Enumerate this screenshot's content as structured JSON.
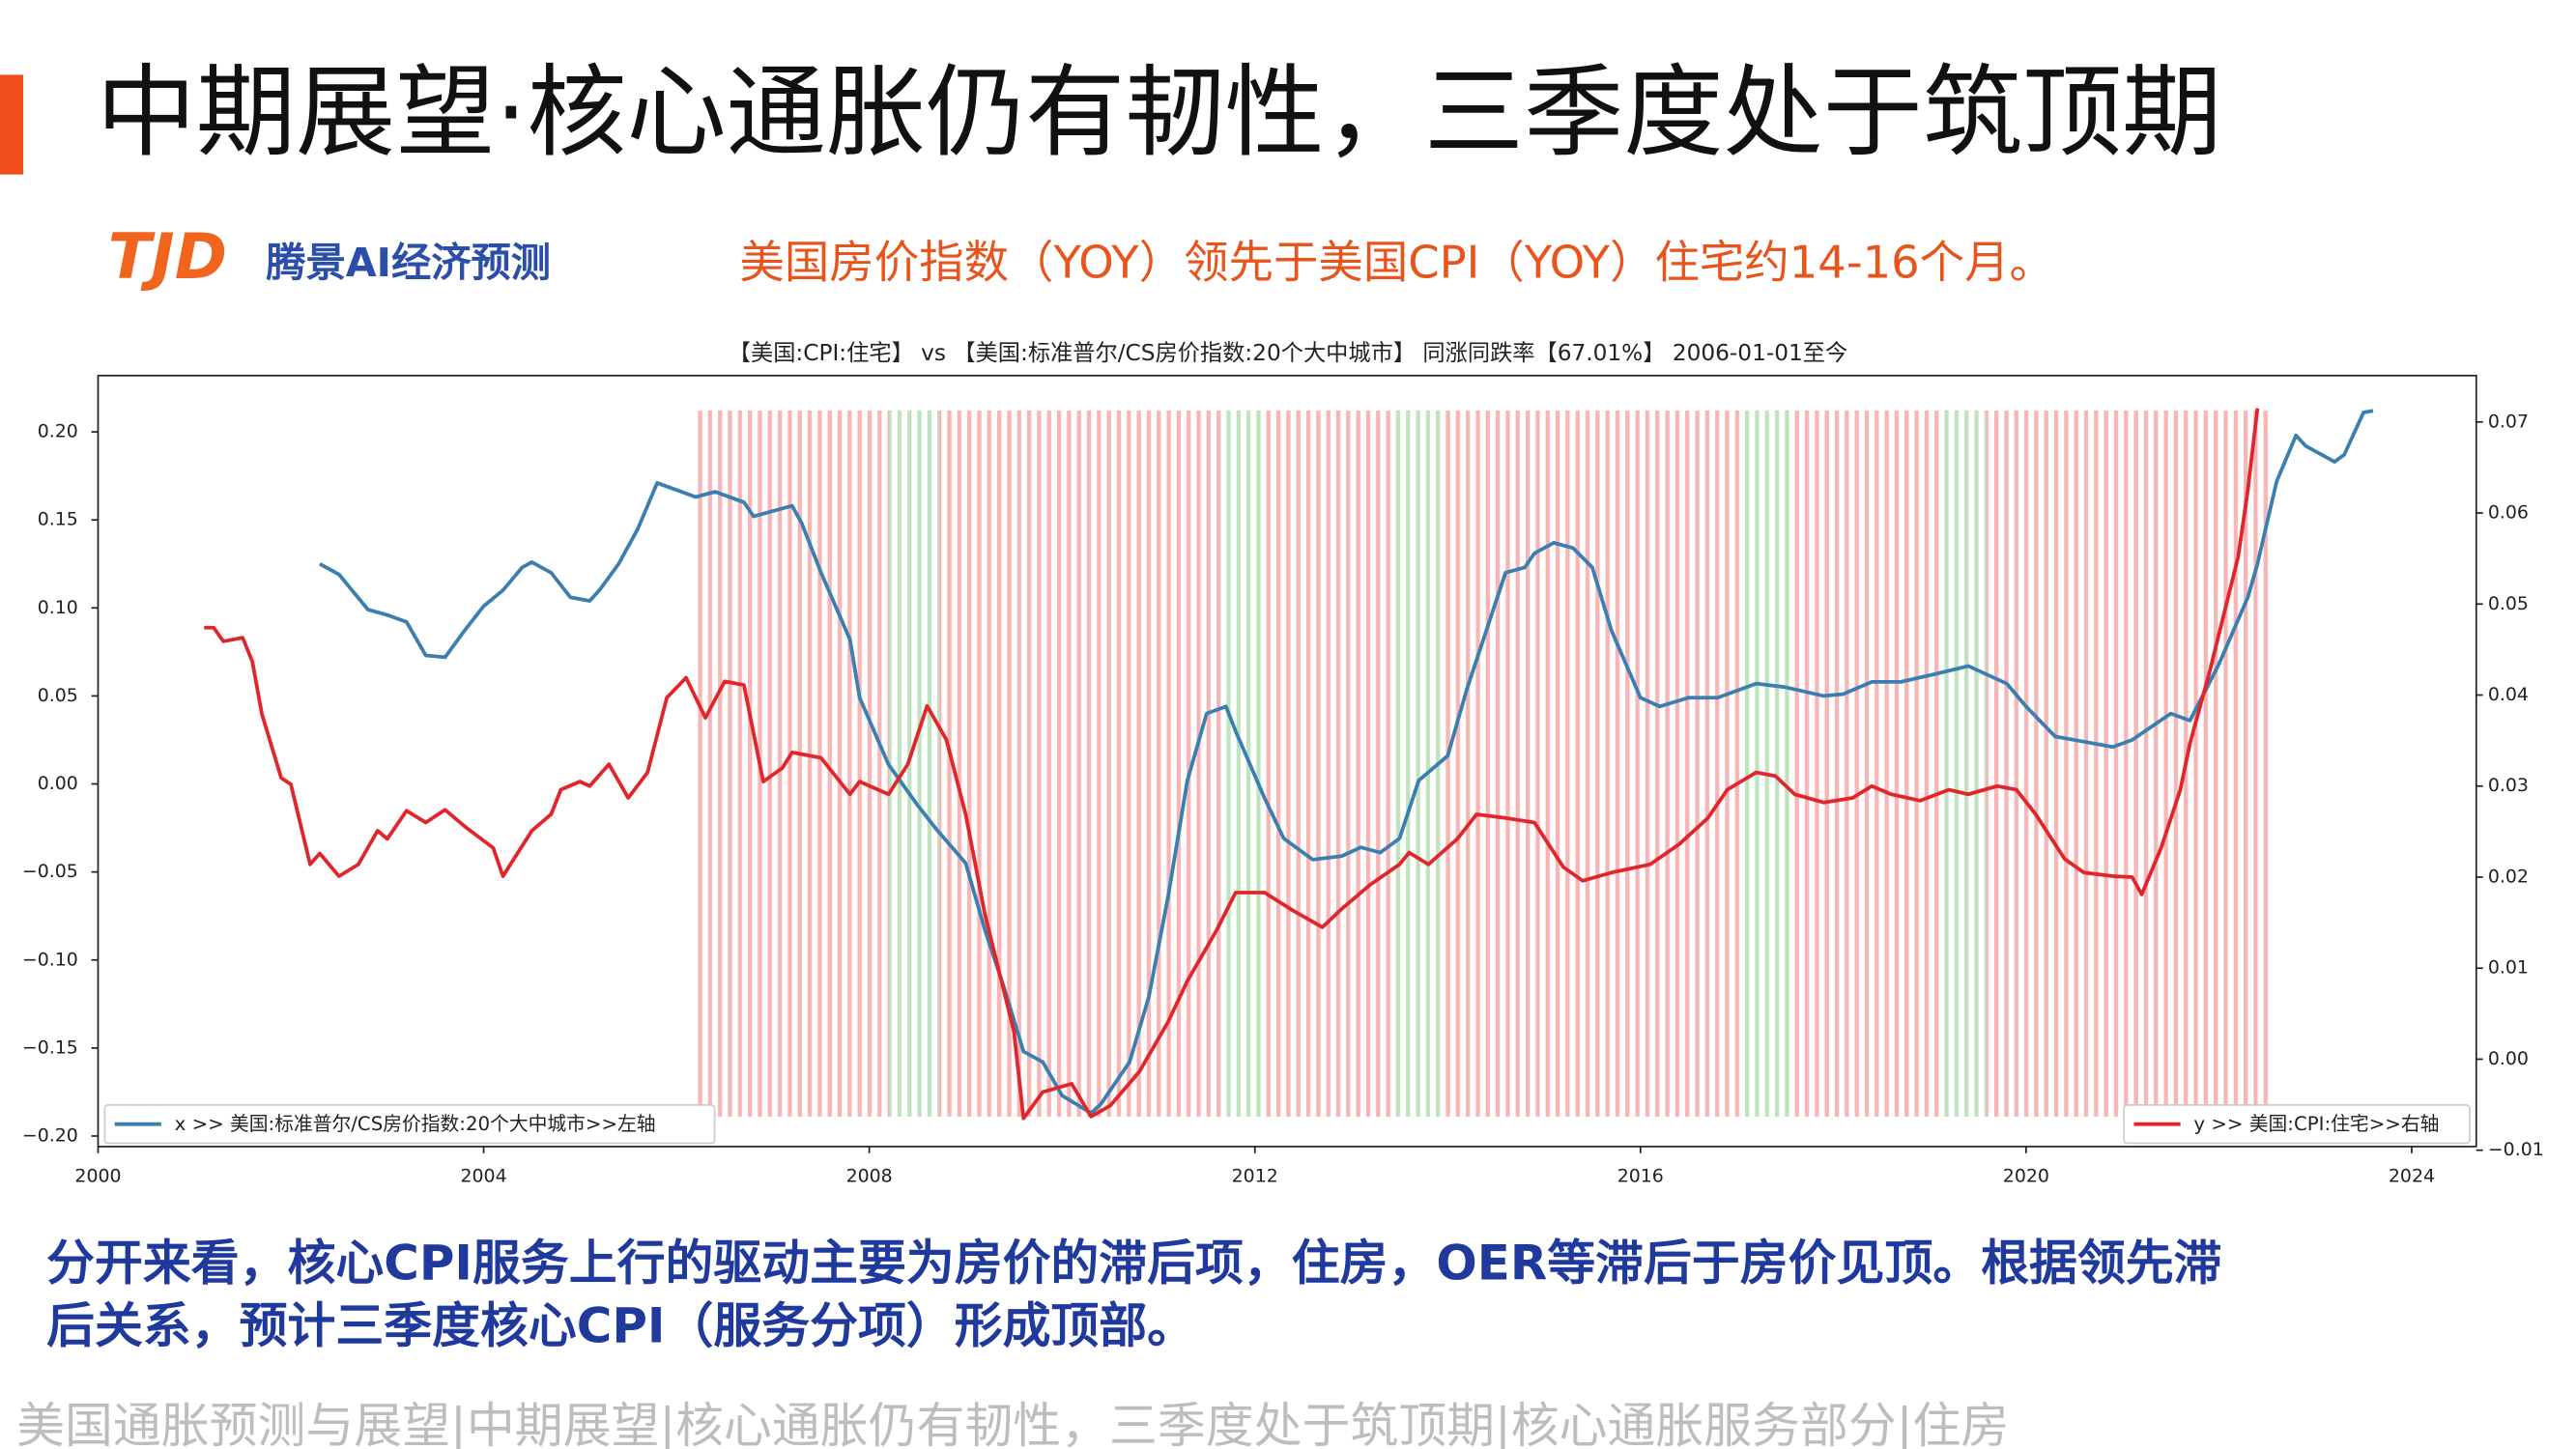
{
  "header": {
    "title": "中期展望·核心通胀仍有韧性，三季度处于筑顶期"
  },
  "logo": {
    "mark": "TJD",
    "name": "腾景AI经济预测"
  },
  "subtitle": "美国房价指数（YOY）领先于美国CPI（YOY）住宅约14-16个月。",
  "chart_data": {
    "type": "line",
    "title": "【美国:CPI:住宅】 vs 【美国:标准普尔/CS房价指数:20个大中城市】 同涨同跌率【67.01%】 2006-01-01至今",
    "xlim": [
      2000,
      2024.67
    ],
    "xticks": [
      2000,
      2004,
      2008,
      2012,
      2016,
      2020,
      2024
    ],
    "ylim": [
      -0.206,
      0.232
    ],
    "yticks": [
      {
        "value": -0.2,
        "label": "−0.20"
      },
      {
        "value": -0.15,
        "label": "−0.15"
      },
      {
        "value": -0.1,
        "label": "−0.10"
      },
      {
        "value": -0.05,
        "label": "−0.05"
      },
      {
        "value": 0,
        "label": "0.00"
      },
      {
        "value": 0.05,
        "label": "0.05"
      },
      {
        "value": 0.1,
        "label": "0.10"
      },
      {
        "value": 0.15,
        "label": "0.15"
      },
      {
        "value": 0.2,
        "label": "0.20"
      }
    ],
    "y2lim": [
      -0.0096,
      0.0751
    ],
    "y2ticks": [
      {
        "value": -0.01,
        "label": "−0.01"
      },
      {
        "value": 0,
        "label": "0.00"
      },
      0.01,
      0.02,
      0.03,
      0.04,
      0.05,
      0.06,
      0.07
    ],
    "series": [
      {
        "name": "x >> 美国:标准普尔/CS房价指数:20个大中城市>>左轴",
        "color": "#3a7fb0",
        "axis": "y",
        "x": [
          2002.3,
          2002.5,
          2002.8,
          2003.0,
          2003.2,
          2003.4,
          2003.6,
          2003.8,
          2004.0,
          2004.2,
          2004.4,
          2004.5,
          2004.7,
          2004.9,
          2005.1,
          2005.2,
          2005.4,
          2005.6,
          2005.8,
          2006.0,
          2006.2,
          2006.4,
          2006.7,
          2006.8,
          2007.2,
          2007.3,
          2007.5,
          2007.8,
          2007.9,
          2008.2,
          2008.5,
          2008.7,
          2009.0,
          2009.2,
          2009.4,
          2009.6,
          2009.8,
          2010.0,
          2010.3,
          2010.4,
          2010.7,
          2010.9,
          2011.1,
          2011.3,
          2011.5,
          2011.7,
          2011.8,
          2012.1,
          2012.3,
          2012.6,
          2012.9,
          2013.1,
          2013.3,
          2013.5,
          2013.7,
          2014.0,
          2014.2,
          2014.4,
          2014.6,
          2014.8,
          2014.9,
          2015.1,
          2015.3,
          2015.5,
          2015.7,
          2016.0,
          2016.2,
          2016.5,
          2016.8,
          2017.2,
          2017.5,
          2017.9,
          2018.1,
          2018.4,
          2018.7,
          2019.1,
          2019.4,
          2019.8,
          2020.0,
          2020.3,
          2020.6,
          2020.9,
          2021.1,
          2021.5,
          2021.7,
          2022.0,
          2022.3,
          2022.4,
          2022.6,
          2022.8,
          2022.9,
          2023.2,
          2023.3,
          2023.5,
          2023.6
        ],
        "values": [
          0.125,
          0.119,
          0.099,
          0.096,
          0.092,
          0.073,
          0.072,
          0.087,
          0.101,
          0.11,
          0.123,
          0.126,
          0.12,
          0.106,
          0.104,
          0.11,
          0.125,
          0.145,
          0.171,
          0.167,
          0.163,
          0.166,
          0.16,
          0.152,
          0.158,
          0.148,
          0.12,
          0.082,
          0.049,
          0.011,
          -0.012,
          -0.026,
          -0.045,
          -0.083,
          -0.116,
          -0.152,
          -0.158,
          -0.177,
          -0.187,
          -0.182,
          -0.158,
          -0.121,
          -0.064,
          0.002,
          0.04,
          0.044,
          0.03,
          -0.008,
          -0.031,
          -0.043,
          -0.041,
          -0.036,
          -0.039,
          -0.031,
          0.002,
          0.016,
          0.054,
          0.087,
          0.12,
          0.123,
          0.131,
          0.137,
          0.134,
          0.123,
          0.087,
          0.049,
          0.044,
          0.049,
          0.049,
          0.057,
          0.055,
          0.05,
          0.051,
          0.058,
          0.058,
          0.063,
          0.067,
          0.057,
          0.044,
          0.027,
          0.024,
          0.021,
          0.025,
          0.04,
          0.036,
          0.068,
          0.106,
          0.125,
          0.172,
          0.198,
          0.192,
          0.183,
          0.187,
          0.211,
          0.212
        ]
      },
      {
        "name": "y >> 美国:CPI:住宅>>右轴",
        "color": "#e0262b",
        "axis": "y2",
        "x": [
          2001.1,
          2001.2,
          2001.3,
          2001.5,
          2001.6,
          2001.7,
          2001.9,
          2002.0,
          2002.2,
          2002.3,
          2002.5,
          2002.7,
          2002.9,
          2003.0,
          2003.2,
          2003.4,
          2003.6,
          2003.8,
          2004.1,
          2004.2,
          2004.5,
          2004.7,
          2004.8,
          2005.0,
          2005.1,
          2005.3,
          2005.5,
          2005.7,
          2005.9,
          2006.1,
          2006.3,
          2006.5,
          2006.7,
          2006.9,
          2007.1,
          2007.2,
          2007.5,
          2007.8,
          2007.9,
          2008.2,
          2008.4,
          2008.6,
          2008.8,
          2009.0,
          2009.2,
          2009.5,
          2009.6,
          2009.8,
          2010.1,
          2010.3,
          2010.5,
          2010.8,
          2011.1,
          2011.3,
          2011.6,
          2011.8,
          2012.1,
          2012.4,
          2012.7,
          2012.9,
          2013.2,
          2013.5,
          2013.6,
          2013.8,
          2014.1,
          2014.3,
          2014.6,
          2014.9,
          2015.2,
          2015.4,
          2015.7,
          2016.1,
          2016.4,
          2016.7,
          2016.9,
          2017.2,
          2017.4,
          2017.6,
          2017.9,
          2018.2,
          2018.4,
          2018.6,
          2018.9,
          2019.2,
          2019.4,
          2019.7,
          2019.9,
          2020.1,
          2020.4,
          2020.6,
          2020.9,
          2021.1,
          2021.2,
          2021.4,
          2021.6,
          2021.7,
          2021.9,
          2022.2,
          2022.3,
          2022.4
        ],
        "values": [
          0.0474,
          0.0474,
          0.0459,
          0.0463,
          0.0437,
          0.0379,
          0.0309,
          0.0302,
          0.0214,
          0.0226,
          0.0201,
          0.0214,
          0.0251,
          0.0242,
          0.0273,
          0.026,
          0.0274,
          0.0256,
          0.0232,
          0.0201,
          0.0251,
          0.0269,
          0.0296,
          0.0305,
          0.03,
          0.0324,
          0.0287,
          0.0315,
          0.0397,
          0.0419,
          0.0375,
          0.0415,
          0.0411,
          0.0305,
          0.032,
          0.0337,
          0.0331,
          0.0291,
          0.0305,
          0.0291,
          0.0324,
          0.0388,
          0.0351,
          0.0269,
          0.0159,
          0.0031,
          -0.0065,
          -0.0036,
          -0.0027,
          -0.0063,
          -0.0051,
          -0.0014,
          0.0041,
          0.0086,
          0.0141,
          0.0183,
          0.0183,
          0.0163,
          0.0145,
          0.0165,
          0.0192,
          0.0214,
          0.0227,
          0.0214,
          0.0242,
          0.0269,
          0.0265,
          0.026,
          0.0211,
          0.0196,
          0.0205,
          0.0214,
          0.0236,
          0.0265,
          0.0296,
          0.0315,
          0.0311,
          0.0291,
          0.0282,
          0.0287,
          0.03,
          0.0291,
          0.0284,
          0.0296,
          0.0291,
          0.03,
          0.0296,
          0.0269,
          0.022,
          0.0205,
          0.0201,
          0.02,
          0.0181,
          0.0232,
          0.0296,
          0.0347,
          0.0424,
          0.0552,
          0.0625,
          0.0715
        ]
      }
    ]
  },
  "body": [
    "分开来看，核心CPI服务上行的驱动主要为房价的滞后项，住房，OER等滞后于房价见顶。根据领先滞",
    "后关系，预计三季度核心CPI（服务分项）形成顶部。"
  ],
  "footer": "美国通胀预测与展望|中期展望|核心通胀仍有韧性，三季度处于筑顶期|核心通胀服务部分|住房"
}
